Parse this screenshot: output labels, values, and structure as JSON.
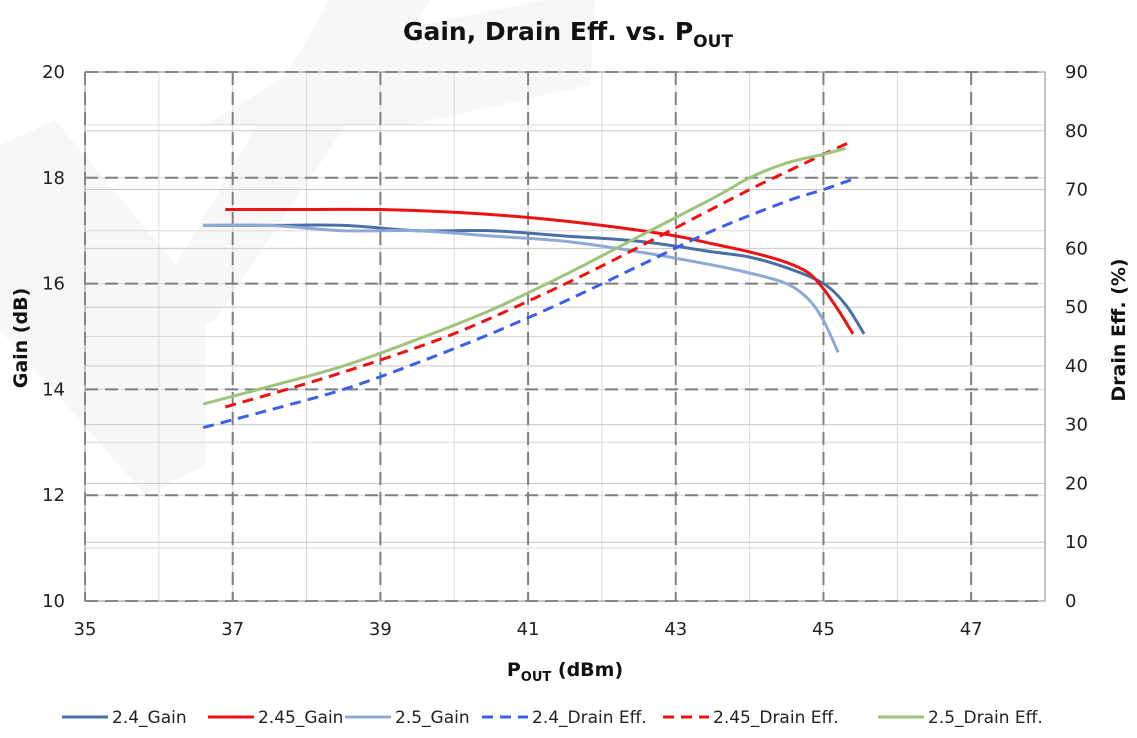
{
  "chart_data": {
    "type": "line",
    "title": {
      "main": "Gain, Drain Eff.  vs. P",
      "sub": "OUT"
    },
    "xlabel": {
      "main": "P",
      "sub": "OUT",
      "suffix": " (dBm)"
    },
    "ylabel_left": "Gain (dB)",
    "ylabel_right": "Drain Eff. (%)",
    "xlim": [
      35,
      48
    ],
    "ylim_left": [
      10,
      20
    ],
    "ylim_right": [
      0,
      90
    ],
    "x_ticks": [
      "35",
      "37",
      "39",
      "41",
      "43",
      "45",
      "47"
    ],
    "y_left_ticks": [
      "10",
      "12",
      "14",
      "16",
      "18",
      "20"
    ],
    "y_right_ticks": [
      "0",
      "10",
      "20",
      "30",
      "40",
      "50",
      "60",
      "70",
      "80",
      "90"
    ],
    "grid": true,
    "legend_position": "bottom",
    "watermark": "NXP",
    "series": [
      {
        "name": "2.4_Gain",
        "axis": "left",
        "color": "#4a6fa5",
        "dash": false,
        "x": [
          36.6,
          37.5,
          38.5,
          39.5,
          40.5,
          41.5,
          42.5,
          43.5,
          44.0,
          44.5,
          45.0,
          45.3,
          45.55
        ],
        "y": [
          17.1,
          17.1,
          17.1,
          17.0,
          17.0,
          16.9,
          16.8,
          16.6,
          16.5,
          16.3,
          16.0,
          15.6,
          15.05
        ]
      },
      {
        "name": "2.45_Gain",
        "axis": "left",
        "color": "#ee1111",
        "dash": false,
        "x": [
          36.9,
          38.0,
          39.0,
          40.0,
          41.0,
          42.0,
          43.0,
          43.5,
          44.0,
          44.5,
          44.8,
          45.0,
          45.2,
          45.4
        ],
        "y": [
          17.4,
          17.4,
          17.4,
          17.35,
          17.25,
          17.1,
          16.9,
          16.75,
          16.6,
          16.4,
          16.2,
          15.9,
          15.5,
          15.05
        ]
      },
      {
        "name": "2.5_Gain",
        "axis": "left",
        "color": "#8fa9d6",
        "dash": false,
        "x": [
          36.6,
          37.5,
          38.5,
          39.5,
          40.5,
          41.5,
          42.5,
          43.5,
          44.0,
          44.5,
          44.8,
          45.0,
          45.2
        ],
        "y": [
          17.1,
          17.1,
          17.0,
          17.0,
          16.9,
          16.8,
          16.6,
          16.35,
          16.2,
          16.0,
          15.7,
          15.3,
          14.7
        ]
      },
      {
        "name": "2.4_Drain Eff.",
        "axis": "right",
        "color": "#3a5fea",
        "dash": true,
        "x": [
          36.6,
          37.5,
          38.5,
          39.5,
          40.5,
          41.5,
          42.5,
          43.5,
          44.5,
          45.0,
          45.45
        ],
        "y": [
          29.5,
          32.5,
          36.0,
          40.5,
          45.5,
          51.0,
          57.0,
          63.0,
          68.0,
          70.0,
          72.0
        ]
      },
      {
        "name": "2.45_Drain Eff.",
        "axis": "right",
        "color": "#ee1111",
        "dash": true,
        "x": [
          36.9,
          38.0,
          39.0,
          40.0,
          41.0,
          42.0,
          43.0,
          44.0,
          44.5,
          45.0,
          45.35
        ],
        "y": [
          33.0,
          37.0,
          41.0,
          45.5,
          51.0,
          57.0,
          63.5,
          70.0,
          73.0,
          76.0,
          78.0
        ]
      },
      {
        "name": "2.5_Drain Eff.",
        "axis": "right",
        "color": "#9ec37a",
        "dash": false,
        "x": [
          36.6,
          37.5,
          38.5,
          39.5,
          40.5,
          41.5,
          42.5,
          43.5,
          44.0,
          44.5,
          45.0,
          45.3
        ],
        "y": [
          33.5,
          36.5,
          40.0,
          44.5,
          49.5,
          55.5,
          62.0,
          68.5,
          72.0,
          74.5,
          76.0,
          77.0
        ]
      }
    ]
  }
}
